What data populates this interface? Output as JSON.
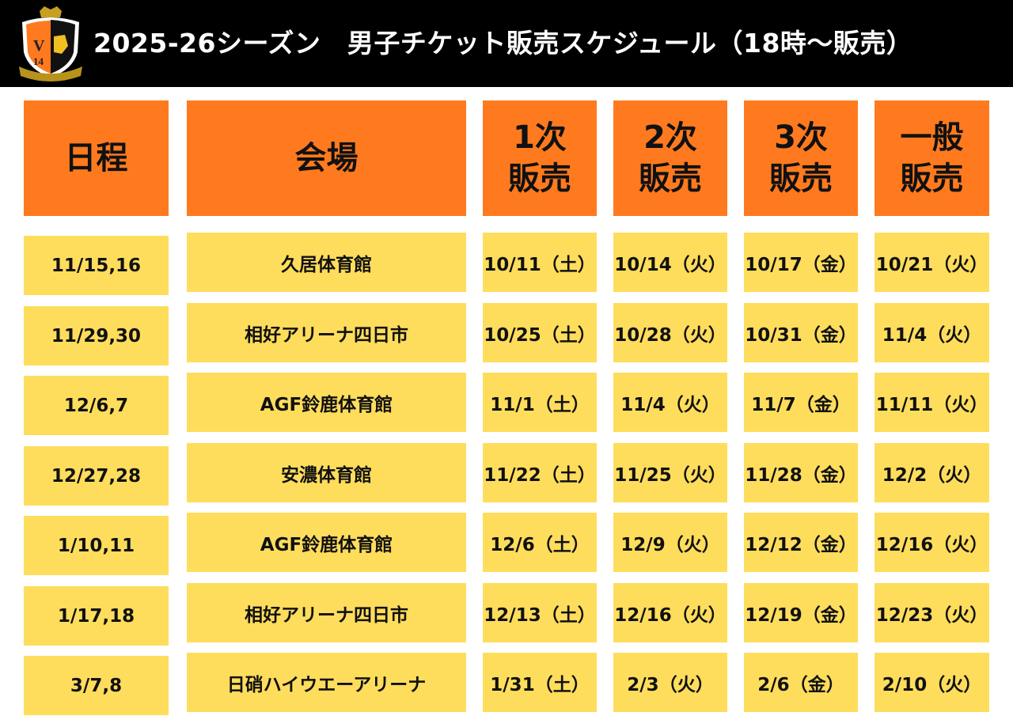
{
  "header": {
    "title": "2025-26シーズン　男子チケット販売スケジュール（18時〜販売）",
    "logo_text": "Veertien MIE 14"
  },
  "colors": {
    "header_bg": "#000000",
    "column_header": "#FF7A1F",
    "cell": "#FFDD5C"
  },
  "columns": [
    "日程",
    "会場",
    "1次\n販売",
    "2次\n販売",
    "3次\n販売",
    "一般\n販売"
  ],
  "rows": [
    {
      "date": "11/15,16",
      "venue": "久居体育館",
      "s1": "10/11（土）",
      "s2": "10/14（火）",
      "s3": "10/17（金）",
      "g": "10/21（火）"
    },
    {
      "date": "11/29,30",
      "venue": "相好アリーナ四日市",
      "s1": "10/25（土）",
      "s2": "10/28（火）",
      "s3": "10/31（金）",
      "g": "11/4（火）"
    },
    {
      "date": "12/6,7",
      "venue": "AGF鈴鹿体育館",
      "s1": "11/1（土）",
      "s2": "11/4（火）",
      "s3": "11/7（金）",
      "g": "11/11（火）"
    },
    {
      "date": "12/27,28",
      "venue": "安濃体育館",
      "s1": "11/22（土）",
      "s2": "11/25（火）",
      "s3": "11/28（金）",
      "g": "12/2（火）"
    },
    {
      "date": "1/10,11",
      "venue": "AGF鈴鹿体育館",
      "s1": "12/6（土）",
      "s2": "12/9（火）",
      "s3": "12/12（金）",
      "g": "12/16（火）"
    },
    {
      "date": "1/17,18",
      "venue": "相好アリーナ四日市",
      "s1": "12/13（土）",
      "s2": "12/16（火）",
      "s3": "12/19（金）",
      "g": "12/23（火）"
    },
    {
      "date": "3/7,8",
      "venue": "日硝ハイウエーアリーナ",
      "s1": "1/31（土）",
      "s2": "2/3（火）",
      "s3": "2/6（金）",
      "g": "2/10（火）"
    }
  ]
}
